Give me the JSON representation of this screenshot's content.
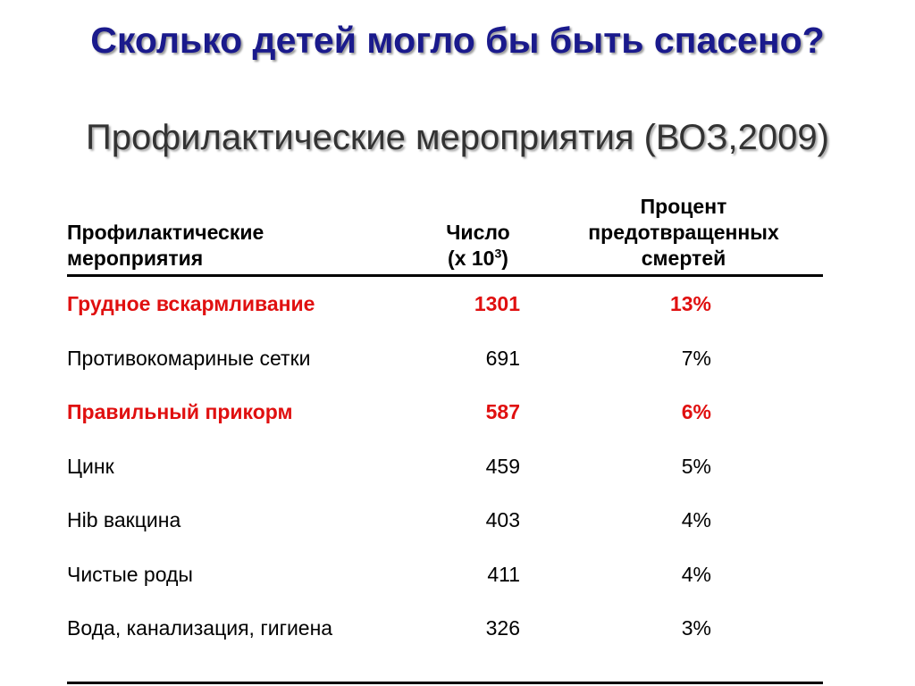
{
  "title": "Сколько детей могло бы быть спасено?",
  "subtitle": "Профилактические мероприятия (ВОЗ,2009)",
  "table": {
    "headers": {
      "intervention_line1": "Профилактические",
      "intervention_line2": "мероприятия",
      "number_line1": "Число",
      "number_line2_prefix": "(x 10",
      "number_line2_sup": "3",
      "number_line2_suffix": ")",
      "percent_line1": "Процент",
      "percent_line2": "предотвращенных",
      "percent_line3": "смертей"
    },
    "rows": [
      {
        "intervention": "Грудное вскармливание",
        "number": "1301",
        "percent": "13%",
        "highlight": true
      },
      {
        "intervention": "Противокомариные сетки",
        "number": "691",
        "percent": "7%",
        "highlight": false
      },
      {
        "intervention": "Правильный прикорм",
        "number": "587",
        "percent": "6%",
        "highlight": true
      },
      {
        "intervention": "Цинк",
        "number": "459",
        "percent": "5%",
        "highlight": false
      },
      {
        "intervention": "Hib вакцина",
        "number": "403",
        "percent": "4%",
        "highlight": false
      },
      {
        "intervention": "Чистые роды",
        "number": "411",
        "percent": "4%",
        "highlight": false
      },
      {
        "intervention": "Вода, канализация, гигиена",
        "number": "326",
        "percent": "3%",
        "highlight": false
      }
    ]
  },
  "colors": {
    "title": "#1a1a8c",
    "subtitle": "#333333",
    "highlight": "#e01010"
  }
}
